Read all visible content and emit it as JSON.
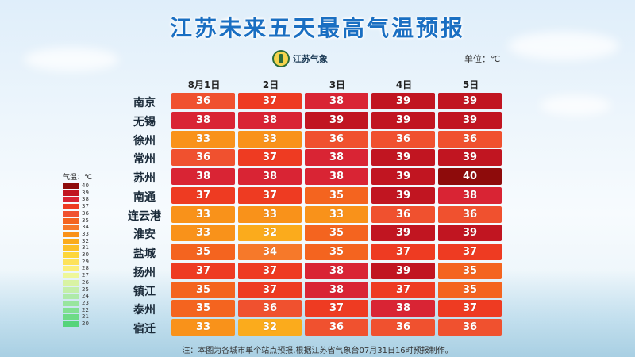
{
  "title": "江苏未来五天最高气温预报",
  "logo_text": "江苏气象",
  "unit": "单位：℃",
  "legend_title": "气温：℃",
  "note": "注：本图为各城市单个站点预报,根据江苏省气象台07月31日16时预报制作。",
  "chart_data": {
    "type": "table",
    "title": "江苏未来五天最高气温预报",
    "unit": "℃",
    "columns": [
      "8月1日",
      "2日",
      "3日",
      "4日",
      "5日"
    ],
    "rows": [
      {
        "city": "南京",
        "values": [
          36,
          37,
          38,
          39,
          39
        ]
      },
      {
        "city": "无锡",
        "values": [
          38,
          38,
          39,
          39,
          39
        ]
      },
      {
        "city": "徐州",
        "values": [
          33,
          33,
          36,
          36,
          36
        ]
      },
      {
        "city": "常州",
        "values": [
          36,
          37,
          38,
          39,
          39
        ]
      },
      {
        "city": "苏州",
        "values": [
          38,
          38,
          38,
          39,
          40
        ]
      },
      {
        "city": "南通",
        "values": [
          37,
          37,
          35,
          39,
          38
        ]
      },
      {
        "city": "连云港",
        "values": [
          33,
          33,
          33,
          36,
          36
        ]
      },
      {
        "city": "淮安",
        "values": [
          33,
          32,
          35,
          39,
          39
        ]
      },
      {
        "city": "盐城",
        "values": [
          35,
          34,
          35,
          37,
          37
        ]
      },
      {
        "city": "扬州",
        "values": [
          37,
          37,
          38,
          39,
          35
        ]
      },
      {
        "city": "镇江",
        "values": [
          35,
          37,
          38,
          37,
          35
        ]
      },
      {
        "city": "泰州",
        "values": [
          35,
          36,
          37,
          38,
          37
        ]
      },
      {
        "city": "宿迁",
        "values": [
          33,
          32,
          36,
          36,
          36
        ]
      }
    ],
    "legend": {
      "labels": [
        40,
        39,
        38,
        37,
        36,
        35,
        34,
        33,
        32,
        31,
        30,
        29,
        28,
        27,
        26,
        25,
        24,
        23,
        22,
        21,
        20
      ],
      "colors": {
        "40": "#8e0b0b",
        "39": "#c11521",
        "38": "#d92434",
        "37": "#ee3b22",
        "36": "#f0512f",
        "35": "#f4641f",
        "34": "#f6792a",
        "33": "#f9921a",
        "32": "#fbab1c",
        "31": "#fcc12a",
        "30": "#fdd63a",
        "29": "#fde25a",
        "28": "#fbef7a",
        "27": "#eef79a",
        "26": "#d9f3a3",
        "25": "#c4efaa",
        "24": "#aeeaa9",
        "23": "#98e59e",
        "22": "#82e092",
        "21": "#6ddb86",
        "20": "#55d47a"
      }
    }
  }
}
